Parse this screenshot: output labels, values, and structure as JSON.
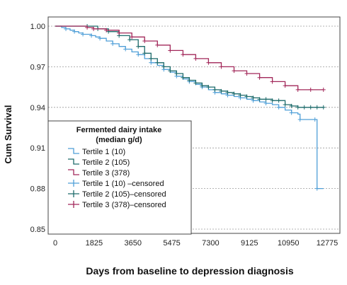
{
  "chart_data": {
    "type": "line",
    "xlabel": "Days from baseline to depression diagnosis",
    "ylabel": "Cum Survival",
    "xlim": [
      0,
      12775
    ],
    "ylim": [
      0.85,
      1.0
    ],
    "x_ticks": [
      0,
      1825,
      3650,
      5475,
      7300,
      9125,
      10950,
      12775
    ],
    "y_ticks": [
      "0.85",
      "0.88",
      "0.91",
      "0.94",
      "0.97",
      "1.00"
    ],
    "grid": "horizontal dotted",
    "legend": {
      "placement": "inside-bottom-left",
      "title_line1": "Fermented dairy intake",
      "title_line2": "(median g/d)",
      "entries": [
        "Tertile 1 (10)",
        "Tertile 2 (105)",
        "Tertile 3 (378)",
        "Tertile 1 (10) –censored",
        "Tertile 2 (105)–censored",
        "Tertile 3 (378)–censored"
      ]
    },
    "series": [
      {
        "name": "Tertile 1 (10)",
        "color": "#4f9fd8",
        "x": [
          0,
          300,
          500,
          700,
          900,
          1100,
          1300,
          1500,
          1700,
          1900,
          2100,
          2400,
          2700,
          3000,
          3300,
          3600,
          3900,
          4200,
          4500,
          4800,
          5100,
          5400,
          5700,
          6000,
          6300,
          6600,
          6900,
          7200,
          7500,
          7800,
          8100,
          8400,
          8700,
          9000,
          9300,
          9600,
          9900,
          10200,
          10500,
          10800,
          11100,
          11400,
          11500,
          12000,
          12200,
          12300,
          12300,
          12600
        ],
        "y": [
          1.0,
          0.999,
          0.998,
          0.997,
          0.996,
          0.995,
          0.994,
          0.994,
          0.993,
          0.992,
          0.991,
          0.989,
          0.987,
          0.985,
          0.983,
          0.981,
          0.979,
          0.976,
          0.973,
          0.971,
          0.968,
          0.966,
          0.963,
          0.961,
          0.959,
          0.957,
          0.955,
          0.953,
          0.951,
          0.95,
          0.949,
          0.948,
          0.947,
          0.946,
          0.945,
          0.944,
          0.943,
          0.942,
          0.94,
          0.938,
          0.936,
          0.935,
          0.931,
          0.931,
          0.931,
          0.931,
          0.88,
          0.88
        ]
      },
      {
        "name": "Tertile 2 (105)",
        "color": "#1d6b6b",
        "x": [
          0,
          1500,
          2000,
          2500,
          3000,
          3500,
          3900,
          4200,
          4500,
          4800,
          5100,
          5400,
          5700,
          6000,
          6300,
          6600,
          6900,
          7200,
          7500,
          7800,
          8100,
          8400,
          8700,
          9000,
          9300,
          9600,
          9900,
          10200,
          10500,
          10800,
          11100,
          11400,
          11700,
          12000,
          12300,
          12600
        ],
        "y": [
          1.0,
          1.0,
          0.998,
          0.996,
          0.993,
          0.99,
          0.985,
          0.98,
          0.976,
          0.973,
          0.97,
          0.967,
          0.965,
          0.962,
          0.96,
          0.958,
          0.956,
          0.955,
          0.953,
          0.952,
          0.951,
          0.95,
          0.949,
          0.948,
          0.947,
          0.946,
          0.946,
          0.945,
          0.945,
          0.942,
          0.941,
          0.94,
          0.94,
          0.94,
          0.94,
          0.94
        ]
      },
      {
        "name": "Tertile 3 (378)",
        "color": "#a2285a",
        "x": [
          0,
          1500,
          1800,
          2400,
          3000,
          3600,
          4200,
          4800,
          5400,
          6000,
          6600,
          7200,
          7800,
          8400,
          9000,
          9600,
          10200,
          10800,
          11400,
          12000,
          12600
        ],
        "y": [
          1.0,
          0.999,
          0.998,
          0.997,
          0.995,
          0.992,
          0.989,
          0.986,
          0.982,
          0.979,
          0.976,
          0.973,
          0.97,
          0.967,
          0.965,
          0.962,
          0.959,
          0.956,
          0.953,
          0.953,
          0.953
        ]
      }
    ]
  }
}
